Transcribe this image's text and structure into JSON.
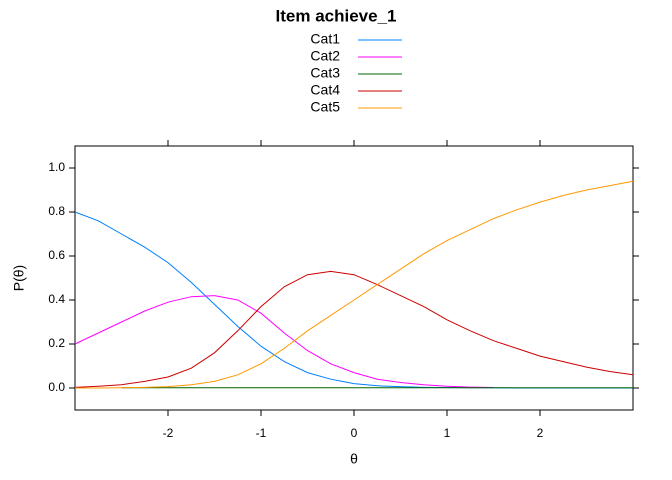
{
  "chart_data": {
    "type": "line",
    "title": "Item achieve_1",
    "xlabel": "θ",
    "ylabel": "P(θ)",
    "x": [
      -3,
      -2.75,
      -2.5,
      -2.25,
      -2,
      -1.75,
      -1.5,
      -1.25,
      -1,
      -0.75,
      -0.5,
      -0.25,
      0,
      0.25,
      0.5,
      0.75,
      1,
      1.25,
      1.5,
      1.75,
      2,
      2.25,
      2.5,
      2.75,
      3
    ],
    "series": [
      {
        "name": "Cat1",
        "color": "#0080ff",
        "values": [
          0.8,
          0.76,
          0.7,
          0.64,
          0.57,
          0.48,
          0.38,
          0.28,
          0.19,
          0.12,
          0.07,
          0.04,
          0.02,
          0.01,
          0.006,
          0.003,
          0.002,
          0.001,
          0.001,
          0,
          0,
          0,
          0,
          0,
          0
        ]
      },
      {
        "name": "Cat2",
        "color": "#ff00ff",
        "values": [
          0.2,
          0.25,
          0.3,
          0.35,
          0.39,
          0.415,
          0.42,
          0.4,
          0.34,
          0.25,
          0.17,
          0.11,
          0.07,
          0.04,
          0.025,
          0.015,
          0.008,
          0.004,
          0.002,
          null,
          null,
          null,
          null,
          null,
          null
        ]
      },
      {
        "name": "Cat3",
        "color": "#006400",
        "values": [
          null,
          null,
          0.001,
          0.001,
          0.001,
          0.001,
          0.001,
          0.001,
          0.001,
          0.001,
          0.001,
          0.001,
          0.001,
          0.001,
          0.001,
          0.001,
          0.001,
          0.001,
          0.001,
          0.001,
          0.001,
          0.001,
          0.001,
          0.001,
          0.001
        ]
      },
      {
        "name": "Cat4",
        "color": "#cc0000",
        "values": [
          0.003,
          0.008,
          0.015,
          0.03,
          0.05,
          0.09,
          0.16,
          0.26,
          0.37,
          0.46,
          0.515,
          0.53,
          0.515,
          0.47,
          0.42,
          0.37,
          0.31,
          0.26,
          0.215,
          0.18,
          0.145,
          0.12,
          0.095,
          0.075,
          0.06
        ]
      },
      {
        "name": "Cat5",
        "color": "#ff9900",
        "values": [
          0,
          0,
          0.001,
          0.003,
          0.006,
          0.015,
          0.03,
          0.06,
          0.11,
          0.18,
          0.26,
          0.33,
          0.4,
          0.47,
          0.54,
          0.61,
          0.67,
          0.72,
          0.77,
          0.81,
          0.845,
          0.875,
          0.9,
          0.92,
          0.94
        ]
      }
    ],
    "xlim": [
      -3,
      3
    ],
    "ylim": [
      -0.1,
      1.1
    ],
    "xticks": [
      -2,
      -1,
      0,
      1,
      2
    ],
    "yticks": [
      {
        "value": 0,
        "label": "0.0"
      },
      {
        "value": 0.2,
        "label": "0.2"
      },
      {
        "value": 0.4,
        "label": "0.4"
      },
      {
        "value": 0.6,
        "label": "0.6"
      },
      {
        "value": 0.8,
        "label": "0.8"
      },
      {
        "value": 1,
        "label": "1.0"
      }
    ]
  }
}
